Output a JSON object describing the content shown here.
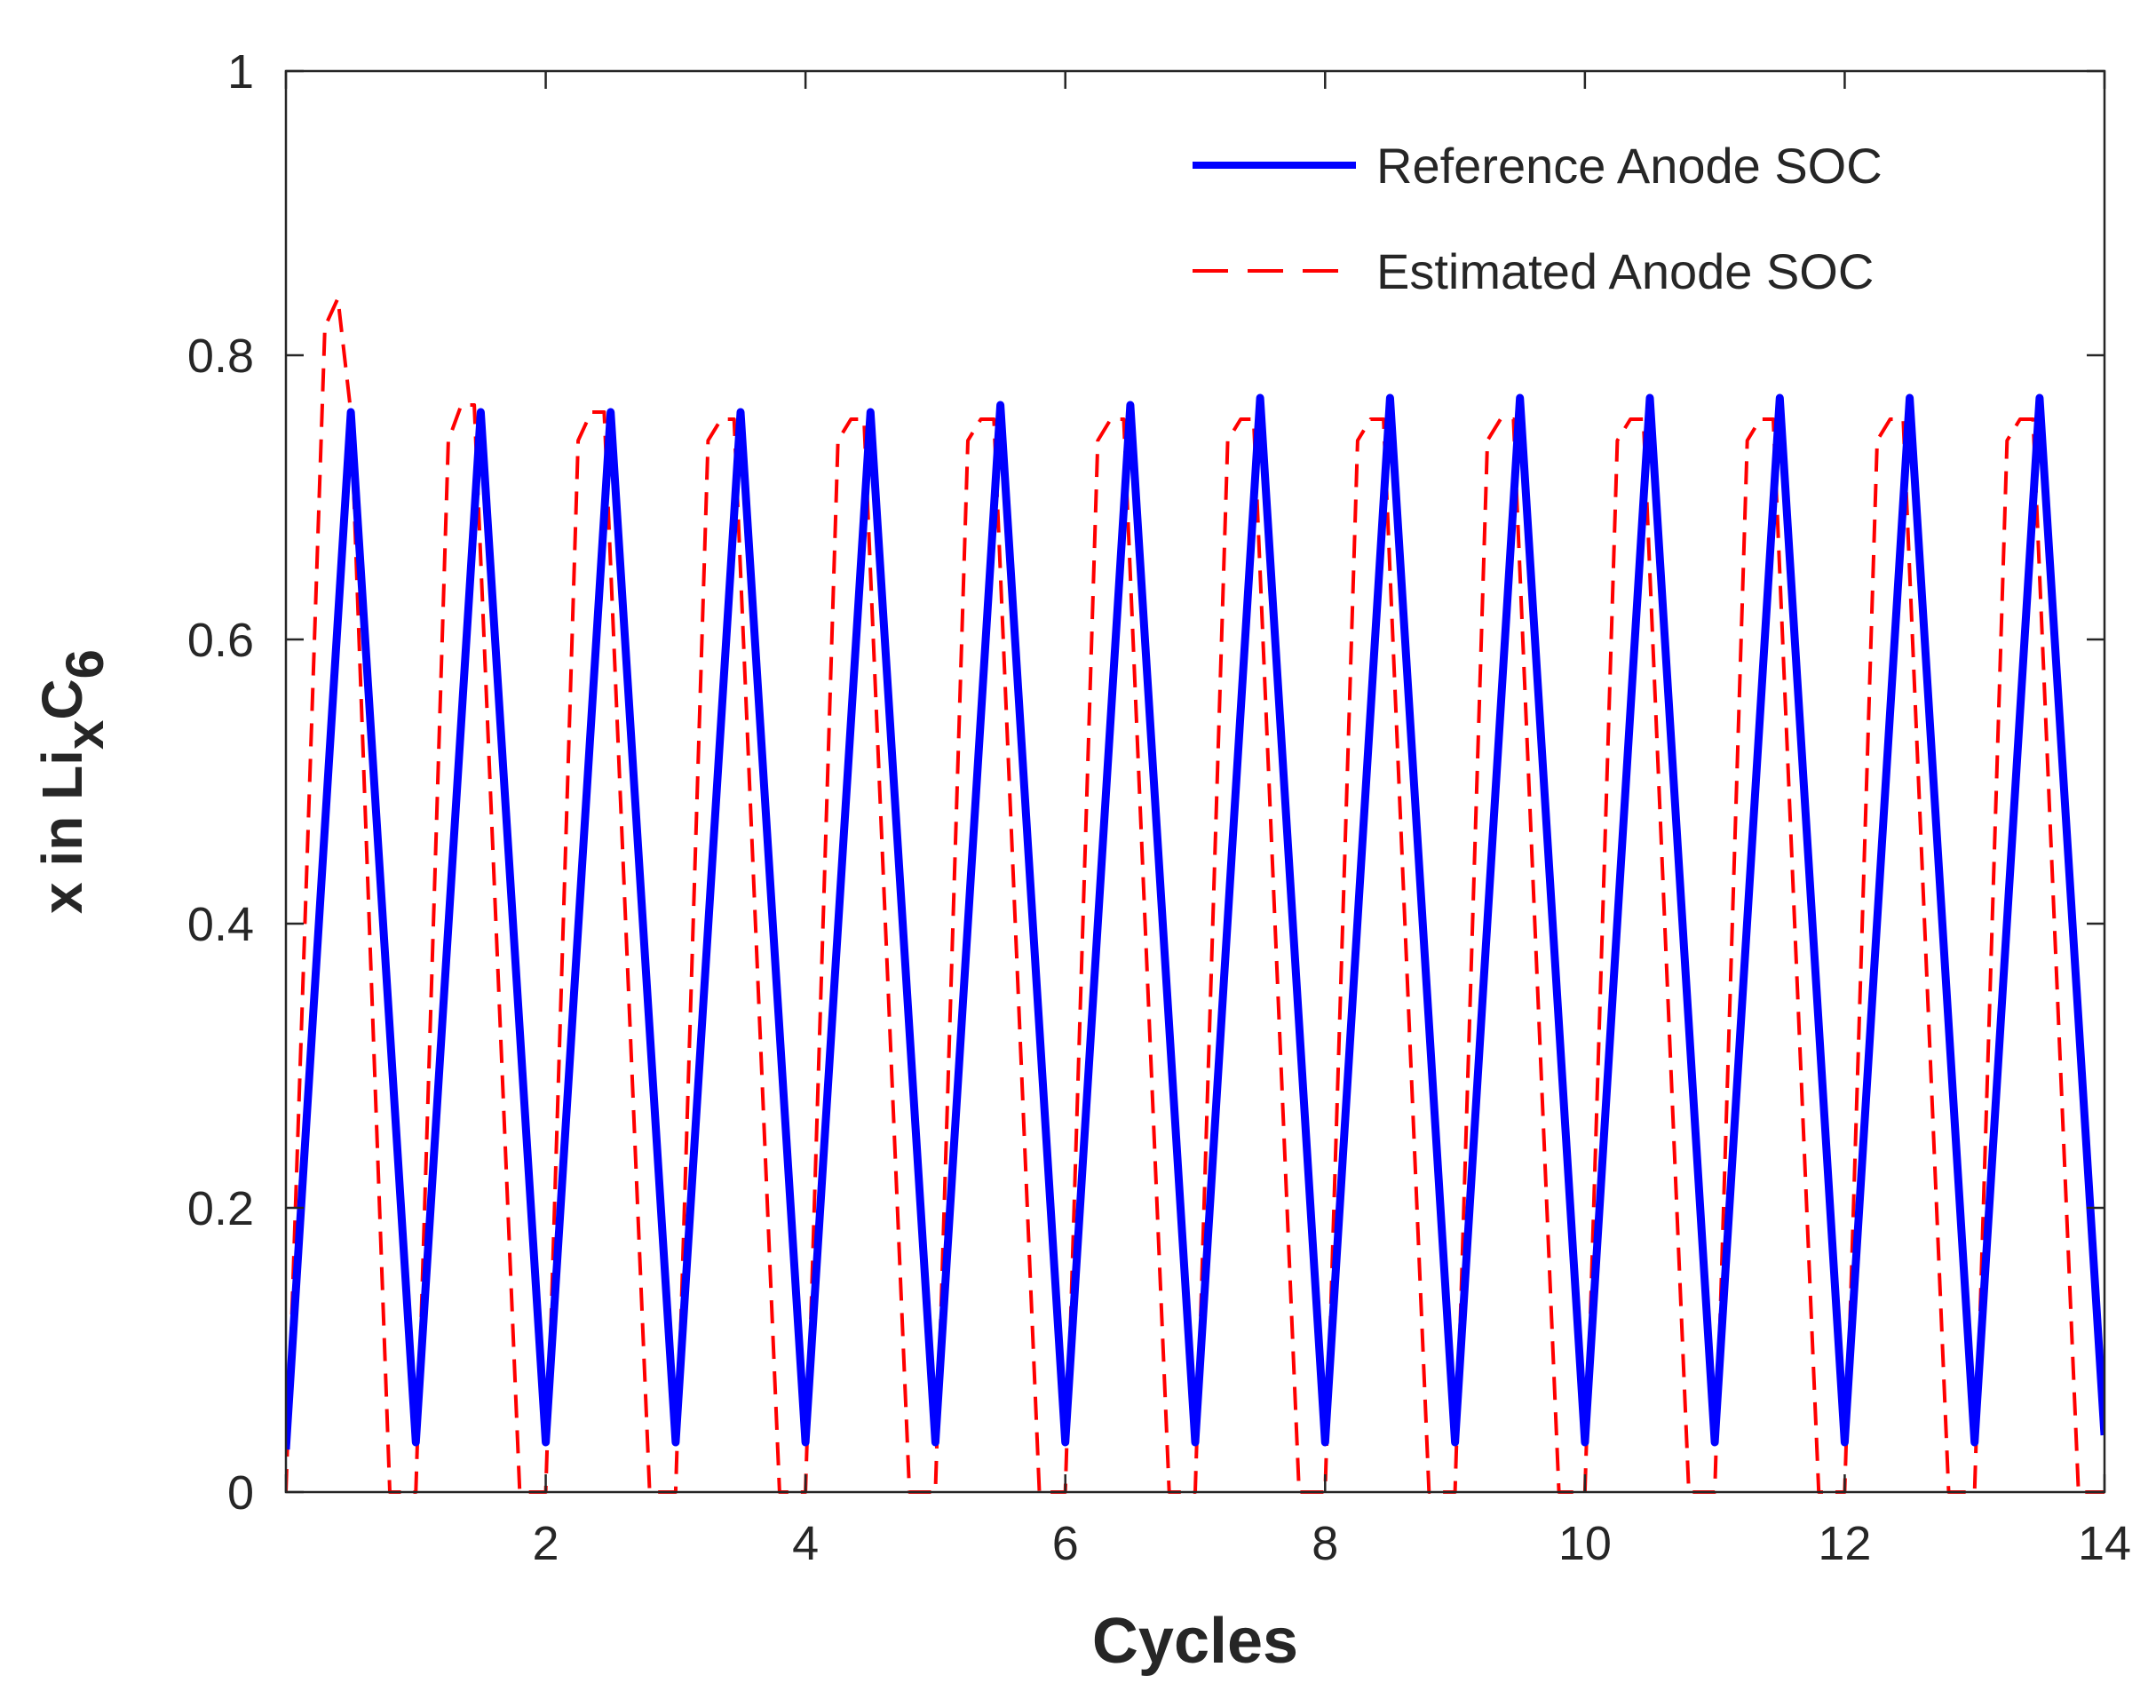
{
  "chart_data": {
    "type": "line",
    "title": "",
    "xlabel": "Cycles",
    "ylabel": {
      "text": "x in Li",
      "sub1": "x",
      "mid": "C",
      "sub2": "6"
    },
    "xlim": [
      0,
      14
    ],
    "ylim": [
      0,
      1
    ],
    "xticks": [
      2,
      4,
      6,
      8,
      10,
      12,
      14
    ],
    "xtick_labels": [
      "2",
      "4",
      "6",
      "8",
      "10",
      "12",
      "14"
    ],
    "yticks": [
      0,
      0.2,
      0.4,
      0.6,
      0.8,
      1
    ],
    "ytick_labels": [
      "0",
      "0.2",
      "0.4",
      "0.6",
      "0.8",
      "1"
    ],
    "grid": false,
    "legend_position": "top-right",
    "series": [
      {
        "name": "Reference Anode SOC",
        "color": "#0000ff",
        "style": "solid",
        "x": [
          0,
          0.5,
          1.0,
          1.5,
          2.0,
          2.5,
          3.0,
          3.5,
          4.0,
          4.5,
          5.0,
          5.5,
          6.0,
          6.5,
          7.0,
          7.5,
          8.0,
          8.5,
          9.0,
          9.5,
          10.0,
          10.5,
          11.0,
          11.5,
          12.0,
          12.5,
          13.0,
          13.5,
          14.0
        ],
        "y": [
          0.03,
          0.76,
          0.035,
          0.76,
          0.035,
          0.76,
          0.035,
          0.76,
          0.035,
          0.76,
          0.035,
          0.765,
          0.035,
          0.765,
          0.035,
          0.77,
          0.035,
          0.77,
          0.035,
          0.77,
          0.035,
          0.77,
          0.035,
          0.77,
          0.035,
          0.77,
          0.035,
          0.77,
          0.04
        ]
      },
      {
        "name": "Estimated Anode SOC",
        "color": "#ff0000",
        "style": "dashed",
        "x": [
          0,
          0.3,
          0.4,
          0.5,
          0.8,
          0.9,
          1.0,
          1.25,
          1.35,
          1.45,
          1.8,
          1.9,
          2.0,
          2.25,
          2.35,
          2.45,
          2.8,
          2.9,
          3.0,
          3.25,
          3.35,
          3.45,
          3.8,
          3.9,
          4.0,
          4.25,
          4.35,
          4.45,
          4.8,
          4.9,
          5.0,
          5.25,
          5.35,
          5.45,
          5.8,
          5.9,
          6.0,
          6.25,
          6.35,
          6.45,
          6.8,
          6.9,
          7.0,
          7.25,
          7.35,
          7.45,
          7.8,
          7.9,
          8.0,
          8.25,
          8.35,
          8.45,
          8.8,
          8.9,
          9.0,
          9.25,
          9.35,
          9.45,
          9.8,
          9.9,
          10.0,
          10.25,
          10.35,
          10.45,
          10.8,
          10.9,
          11.0,
          11.25,
          11.35,
          11.45,
          11.8,
          11.9,
          12.0,
          12.25,
          12.35,
          12.45,
          12.8,
          12.9,
          13.0,
          13.25,
          13.35,
          13.45,
          13.8,
          13.9,
          14.0
        ],
        "y": [
          0.0,
          0.82,
          0.84,
          0.76,
          0.0,
          0.0,
          0.0,
          0.74,
          0.765,
          0.765,
          0.0,
          0.0,
          0.0,
          0.74,
          0.76,
          0.76,
          0.0,
          0.0,
          0.0,
          0.74,
          0.755,
          0.755,
          0.0,
          0.0,
          0.0,
          0.74,
          0.755,
          0.755,
          0.0,
          0.0,
          0.0,
          0.74,
          0.755,
          0.755,
          0.0,
          0.0,
          0.0,
          0.74,
          0.755,
          0.755,
          0.0,
          0.0,
          0.0,
          0.74,
          0.755,
          0.755,
          0.0,
          0.0,
          0.0,
          0.74,
          0.755,
          0.755,
          0.0,
          0.0,
          0.0,
          0.74,
          0.755,
          0.755,
          0.0,
          0.0,
          0.0,
          0.74,
          0.755,
          0.755,
          0.0,
          0.0,
          0.0,
          0.74,
          0.755,
          0.755,
          0.0,
          0.0,
          0.0,
          0.74,
          0.755,
          0.755,
          0.0,
          0.0,
          0.0,
          0.74,
          0.755,
          0.755,
          0.0,
          0.0,
          0.0
        ]
      }
    ]
  }
}
